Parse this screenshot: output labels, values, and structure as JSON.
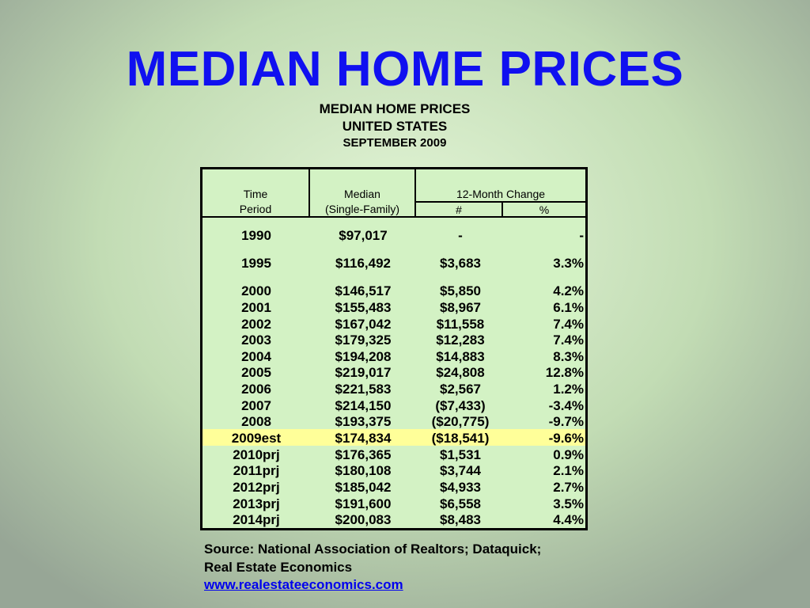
{
  "slide": {
    "title": "MEDIAN HOME PRICES",
    "subtitle_line1": "MEDIAN HOME PRICES",
    "subtitle_line2": "UNITED STATES",
    "subtitle_line3": "SEPTEMBER 2009"
  },
  "table": {
    "headers": {
      "time_line1": "Time",
      "time_line2": "Period",
      "median_line1": "Median",
      "median_line2": "(Single-Family)",
      "change_group": "12-Month Change",
      "change_num": "#",
      "change_pct": "%"
    },
    "highlight_color": "#ffff99",
    "rows": [
      {
        "period": "1990",
        "median": "$97,017",
        "num": "-",
        "pct": "-"
      },
      {
        "period": "1995",
        "median": "$116,492",
        "num": "$3,683",
        "pct": "3.3%"
      },
      {
        "period": "2000",
        "median": "$146,517",
        "num": "$5,850",
        "pct": "4.2%"
      },
      {
        "period": "2001",
        "median": "$155,483",
        "num": "$8,967",
        "pct": "6.1%"
      },
      {
        "period": "2002",
        "median": "$167,042",
        "num": "$11,558",
        "pct": "7.4%"
      },
      {
        "period": "2003",
        "median": "$179,325",
        "num": "$12,283",
        "pct": "7.4%"
      },
      {
        "period": "2004",
        "median": "$194,208",
        "num": "$14,883",
        "pct": "8.3%"
      },
      {
        "period": "2005",
        "median": "$219,017",
        "num": "$24,808",
        "pct": "12.8%"
      },
      {
        "period": "2006",
        "median": "$221,583",
        "num": "$2,567",
        "pct": "1.2%"
      },
      {
        "period": "2007",
        "median": "$214,150",
        "num": "($7,433)",
        "pct": "-3.4%"
      },
      {
        "period": "2008",
        "median": "$193,375",
        "num": "($20,775)",
        "pct": "-9.7%"
      },
      {
        "period": "2009est",
        "median": "$174,834",
        "num": "($18,541)",
        "pct": "-9.6%",
        "highlighted": true
      },
      {
        "period": "2010prj",
        "median": "$176,365",
        "num": "$1,531",
        "pct": "0.9%"
      },
      {
        "period": "2011prj",
        "median": "$180,108",
        "num": "$3,744",
        "pct": "2.1%"
      },
      {
        "period": "2012prj",
        "median": "$185,042",
        "num": "$4,933",
        "pct": "2.7%"
      },
      {
        "period": "2013prj",
        "median": "$191,600",
        "num": "$6,558",
        "pct": "3.5%"
      },
      {
        "period": "2014prj",
        "median": "$200,083",
        "num": "$8,483",
        "pct": "4.4%"
      }
    ]
  },
  "source": {
    "line1": "Source: National Association of Realtors; Dataquick;",
    "line2": "Real Estate Economics",
    "link": "www.realestateeconomics.com"
  }
}
